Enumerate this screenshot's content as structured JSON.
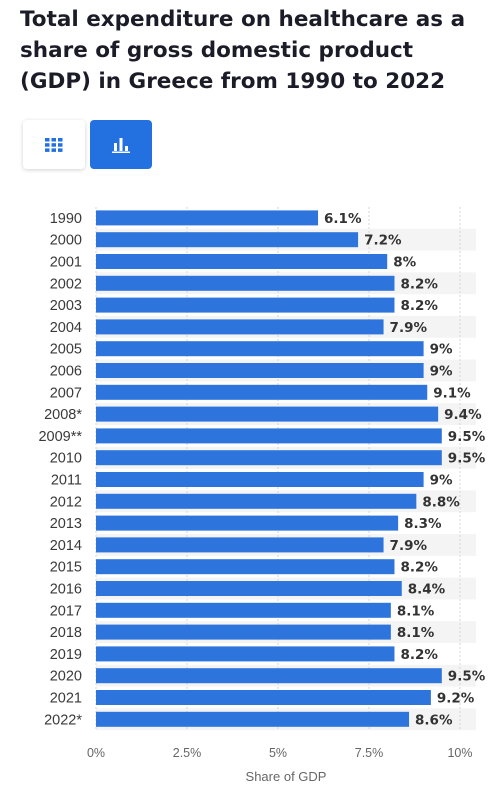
{
  "title": "Total expenditure on healthcare as a share of gross domestic product (GDP) in Greece from 1990 to 2022",
  "toggles": {
    "table_icon": "table-icon",
    "bar_icon": "bar-chart-icon",
    "active": "bar"
  },
  "colors": {
    "bar": "#2d74dc",
    "accent": "#2371e0",
    "stripe": "#f4f4f4"
  },
  "chart_data": {
    "type": "bar",
    "orientation": "horizontal",
    "categories": [
      "1990",
      "2000",
      "2001",
      "2002",
      "2003",
      "2004",
      "2005",
      "2006",
      "2007",
      "2008*",
      "2009**",
      "2010",
      "2011",
      "2012",
      "2013",
      "2014",
      "2015",
      "2016",
      "2017",
      "2018",
      "2019",
      "2020",
      "2021",
      "2022*"
    ],
    "values": [
      6.1,
      7.2,
      8,
      8.2,
      8.2,
      7.9,
      9,
      9,
      9.1,
      9.4,
      9.5,
      9.5,
      9,
      8.8,
      8.3,
      7.9,
      8.2,
      8.4,
      8.1,
      8.1,
      8.2,
      9.5,
      9.2,
      8.6
    ],
    "value_labels": [
      "6.1%",
      "7.2%",
      "8%",
      "8.2%",
      "8.2%",
      "7.9%",
      "9%",
      "9%",
      "9.1%",
      "9.4%",
      "9.5%",
      "9.5%",
      "9%",
      "8.8%",
      "8.3%",
      "7.9%",
      "8.2%",
      "8.4%",
      "8.1%",
      "8.1%",
      "8.2%",
      "9.5%",
      "9.2%",
      "8.6%"
    ],
    "xlim": [
      0,
      10
    ],
    "ticks": [
      0,
      2.5,
      5,
      7.5,
      10
    ],
    "tick_labels": [
      "0%",
      "2.5%",
      "5%",
      "7.5%",
      "10%"
    ],
    "xlabel": "Share of GDP",
    "ylabel": "",
    "grid": true
  }
}
